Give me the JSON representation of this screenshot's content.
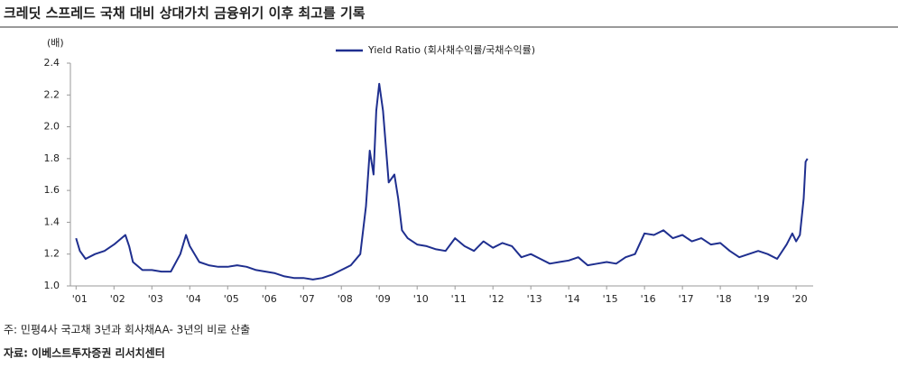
{
  "chart_data": {
    "type": "line",
    "title": "크레딧 스프레드 국채 대비 상대가치 금융위기 이후 최고를 기록",
    "y_label": "(배)",
    "note": "주: 민평4사 국고채 3년과 회사채AA- 3년의 비로 산출",
    "source": "자료: 이베스트투자증권 리서치센터",
    "legend_position": "top",
    "x": [
      2001.0,
      2001.1,
      2001.25,
      2001.5,
      2001.75,
      2002.0,
      2002.3,
      2002.4,
      2002.5,
      2002.75,
      2003.0,
      2003.25,
      2003.5,
      2003.75,
      2003.9,
      2004.0,
      2004.25,
      2004.5,
      2004.75,
      2005.0,
      2005.25,
      2005.5,
      2005.75,
      2006.0,
      2006.25,
      2006.5,
      2006.75,
      2007.0,
      2007.25,
      2007.5,
      2007.75,
      2008.0,
      2008.25,
      2008.5,
      2008.65,
      2008.75,
      2008.85,
      2008.92,
      2009.0,
      2009.1,
      2009.25,
      2009.4,
      2009.5,
      2009.6,
      2009.75,
      2010.0,
      2010.25,
      2010.5,
      2010.75,
      2011.0,
      2011.25,
      2011.5,
      2011.75,
      2012.0,
      2012.25,
      2012.5,
      2012.75,
      2013.0,
      2013.25,
      2013.5,
      2013.75,
      2014.0,
      2014.25,
      2014.5,
      2014.75,
      2015.0,
      2015.25,
      2015.5,
      2015.75,
      2016.0,
      2016.25,
      2016.5,
      2016.75,
      2017.0,
      2017.25,
      2017.5,
      2017.75,
      2018.0,
      2018.25,
      2018.5,
      2018.75,
      2019.0,
      2019.25,
      2019.5,
      2019.75,
      2019.9,
      2020.0,
      2020.1,
      2020.2,
      2020.25,
      2020.3
    ],
    "series": [
      {
        "name": "Yield Ratio (회사채수익률/국채수익률)",
        "color": "#1f2f8f",
        "values": [
          1.3,
          1.22,
          1.17,
          1.2,
          1.22,
          1.26,
          1.32,
          1.25,
          1.15,
          1.1,
          1.1,
          1.09,
          1.09,
          1.2,
          1.32,
          1.25,
          1.15,
          1.13,
          1.12,
          1.12,
          1.13,
          1.12,
          1.1,
          1.09,
          1.08,
          1.06,
          1.05,
          1.05,
          1.04,
          1.05,
          1.07,
          1.1,
          1.13,
          1.2,
          1.5,
          1.85,
          1.7,
          2.1,
          2.27,
          2.1,
          1.65,
          1.7,
          1.55,
          1.35,
          1.3,
          1.26,
          1.25,
          1.23,
          1.22,
          1.3,
          1.25,
          1.22,
          1.28,
          1.24,
          1.27,
          1.25,
          1.18,
          1.2,
          1.17,
          1.14,
          1.15,
          1.16,
          1.18,
          1.13,
          1.14,
          1.15,
          1.14,
          1.18,
          1.2,
          1.33,
          1.32,
          1.35,
          1.3,
          1.32,
          1.28,
          1.3,
          1.26,
          1.27,
          1.22,
          1.18,
          1.2,
          1.22,
          1.2,
          1.17,
          1.26,
          1.33,
          1.28,
          1.32,
          1.55,
          1.78,
          1.8
        ]
      }
    ],
    "xlim": [
      2000.85,
      2020.45
    ],
    "xticks": [
      {
        "value": 2001,
        "label": "'01"
      },
      {
        "value": 2002,
        "label": "'02"
      },
      {
        "value": 2003,
        "label": "'03"
      },
      {
        "value": 2004,
        "label": "'04"
      },
      {
        "value": 2005,
        "label": "'05"
      },
      {
        "value": 2006,
        "label": "'06"
      },
      {
        "value": 2007,
        "label": "'07"
      },
      {
        "value": 2008,
        "label": "'08"
      },
      {
        "value": 2009,
        "label": "'09"
      },
      {
        "value": 2010,
        "label": "'10"
      },
      {
        "value": 2011,
        "label": "'11"
      },
      {
        "value": 2012,
        "label": "'12"
      },
      {
        "value": 2013,
        "label": "'13"
      },
      {
        "value": 2014,
        "label": "'14"
      },
      {
        "value": 2015,
        "label": "'15"
      },
      {
        "value": 2016,
        "label": "'16"
      },
      {
        "value": 2017,
        "label": "'17"
      },
      {
        "value": 2018,
        "label": "'18"
      },
      {
        "value": 2019,
        "label": "'19"
      },
      {
        "value": 2020,
        "label": "'20"
      }
    ],
    "ylim": [
      1.0,
      2.4
    ],
    "yticks": [
      {
        "value": 1.0,
        "label": "1.0"
      },
      1.2,
      1.4,
      1.6,
      1.8,
      {
        "value": 2.0,
        "label": "2.0"
      },
      2.2,
      2.4
    ],
    "grid": false
  }
}
